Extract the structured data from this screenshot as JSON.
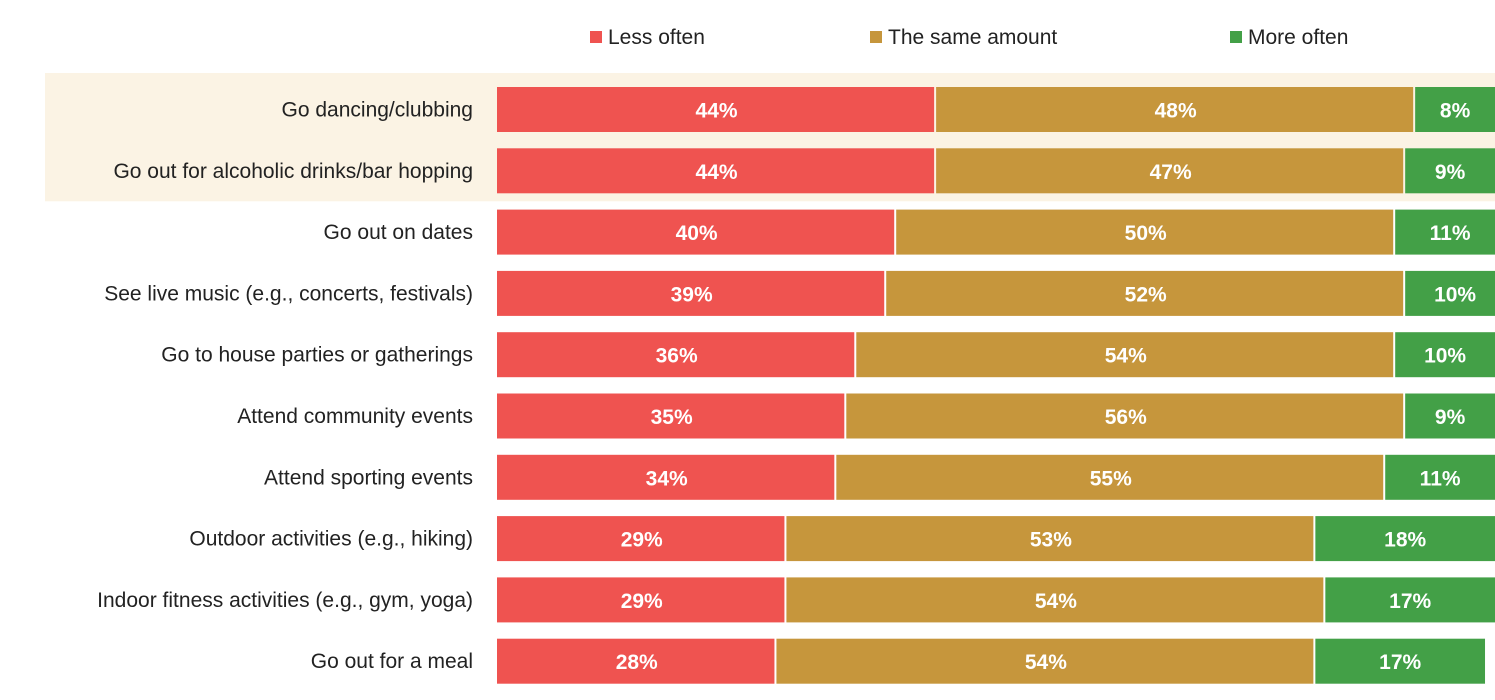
{
  "chart_data": {
    "type": "bar",
    "orientation": "horizontal",
    "stacked": true,
    "title": "",
    "xlabel": "",
    "ylabel": "",
    "xlim": [
      0,
      100
    ],
    "grid": false,
    "legend_position": "top",
    "value_suffix": "%",
    "categories": [
      "Go dancing/clubbing",
      "Go out for alcoholic drinks/bar hopping",
      "Go out on dates",
      "See live music (e.g., concerts, festivals)",
      "Go to house parties or gatherings",
      "Attend community events",
      "Attend sporting events",
      "Outdoor activities (e.g., hiking)",
      "Indoor fitness activities (e.g., gym, yoga)",
      "Go out for a meal"
    ],
    "highlighted_categories": [
      "Go dancing/clubbing",
      "Go out for alcoholic drinks/bar hopping"
    ],
    "series": [
      {
        "name": "Less often",
        "color": "#ef5350",
        "values": [
          44,
          44,
          40,
          39,
          36,
          35,
          34,
          29,
          29,
          28
        ]
      },
      {
        "name": "The same amount",
        "color": "#c6963c",
        "values": [
          48,
          47,
          50,
          52,
          54,
          56,
          55,
          53,
          54,
          54
        ]
      },
      {
        "name": "More often",
        "color": "#43a047",
        "values": [
          8,
          9,
          11,
          10,
          10,
          9,
          11,
          18,
          17,
          17
        ]
      }
    ],
    "highlight_color": "#fbf3e4"
  }
}
